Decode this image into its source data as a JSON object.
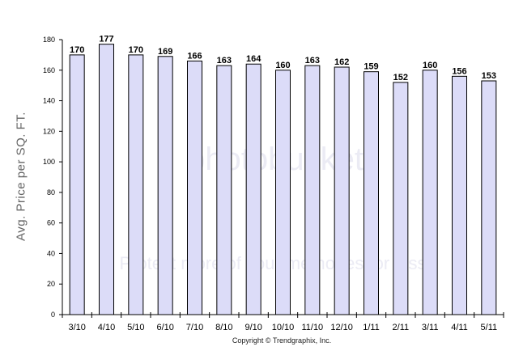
{
  "chart_data": {
    "type": "bar",
    "categories": [
      "3/10",
      "4/10",
      "5/10",
      "6/10",
      "7/10",
      "8/10",
      "9/10",
      "10/10",
      "11/10",
      "12/10",
      "1/11",
      "2/11",
      "3/11",
      "4/11",
      "5/11"
    ],
    "values": [
      170,
      177,
      170,
      169,
      166,
      163,
      164,
      160,
      163,
      162,
      159,
      152,
      160,
      156,
      153
    ],
    "title": "",
    "xlabel": "",
    "ylabel": "Avg. Price per SQ. FT.",
    "ylim": [
      0,
      180
    ],
    "yticks": [
      0,
      20,
      40,
      60,
      80,
      100,
      120,
      140,
      160,
      180
    ],
    "grid": false,
    "data_labels": true,
    "colors": {
      "bar_fill": "#dcdcf8",
      "bar_stroke": "#000000",
      "label": "#000000",
      "axis": "#000000"
    }
  },
  "footer": {
    "copyright": "Copyright © Trendgraphix, Inc."
  },
  "watermark": {
    "text": "photobucket",
    "subtext": "Protect more of your memories for less!"
  }
}
